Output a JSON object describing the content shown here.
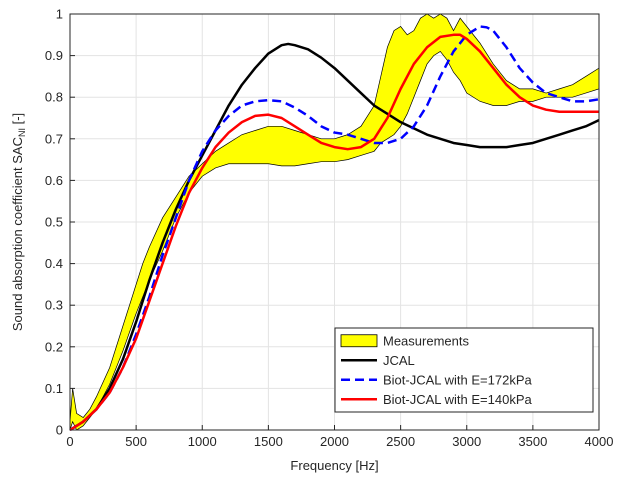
{
  "chart_data": {
    "type": "line",
    "xlabel": "Frequency [Hz]",
    "ylabel_main": "Sound absorption coefficient SAC",
    "ylabel_sub": "NI",
    "ylabel_unit": " [-]",
    "xlim": [
      0,
      4000
    ],
    "ylim": [
      0,
      1
    ],
    "xticks": [
      "0",
      "500",
      "1000",
      "1500",
      "2000",
      "2500",
      "3000",
      "3500",
      "4000"
    ],
    "yticks": [
      "0",
      "0.1",
      "0.2",
      "0.3",
      "0.4",
      "0.5",
      "0.6",
      "0.7",
      "0.8",
      "0.9",
      "1"
    ],
    "grid": true,
    "legend_position": "bottom-right",
    "band": {
      "name": "Measurements",
      "color": "#ffff00",
      "x": [
        0,
        20,
        50,
        100,
        150,
        200,
        300,
        400,
        500,
        550,
        600,
        700,
        800,
        900,
        1000,
        1100,
        1200,
        1300,
        1400,
        1500,
        1600,
        1700,
        1800,
        1900,
        2000,
        2100,
        2200,
        2300,
        2350,
        2400,
        2450,
        2500,
        2550,
        2600,
        2650,
        2700,
        2750,
        2800,
        2850,
        2900,
        2950,
        3000,
        3100,
        3200,
        3300,
        3400,
        3500,
        3600,
        3700,
        3800,
        3900,
        4000
      ],
      "upper": [
        0.02,
        0.1,
        0.04,
        0.03,
        0.05,
        0.08,
        0.15,
        0.25,
        0.35,
        0.4,
        0.44,
        0.51,
        0.56,
        0.61,
        0.64,
        0.67,
        0.69,
        0.71,
        0.72,
        0.73,
        0.73,
        0.72,
        0.71,
        0.7,
        0.7,
        0.71,
        0.73,
        0.78,
        0.85,
        0.92,
        0.96,
        0.97,
        0.95,
        0.96,
        0.99,
        1.0,
        0.99,
        1.0,
        0.99,
        0.96,
        0.99,
        0.97,
        0.93,
        0.88,
        0.84,
        0.82,
        0.82,
        0.81,
        0.82,
        0.83,
        0.85,
        0.87
      ],
      "lower": [
        0.0,
        0.02,
        0.0,
        0.01,
        0.03,
        0.05,
        0.11,
        0.19,
        0.28,
        0.32,
        0.36,
        0.43,
        0.51,
        0.57,
        0.61,
        0.63,
        0.64,
        0.64,
        0.64,
        0.64,
        0.635,
        0.635,
        0.64,
        0.645,
        0.645,
        0.65,
        0.66,
        0.67,
        0.69,
        0.7,
        0.71,
        0.73,
        0.76,
        0.8,
        0.84,
        0.88,
        0.9,
        0.91,
        0.89,
        0.86,
        0.84,
        0.81,
        0.79,
        0.78,
        0.78,
        0.79,
        0.79,
        0.8,
        0.8,
        0.8,
        0.81,
        0.82
      ]
    },
    "series": [
      {
        "name": "JCAL",
        "color": "#000000",
        "dash": "solid",
        "x": [
          0,
          100,
          200,
          300,
          400,
          500,
          600,
          700,
          800,
          900,
          1000,
          1100,
          1200,
          1300,
          1400,
          1500,
          1600,
          1650,
          1700,
          1800,
          1900,
          2000,
          2100,
          2200,
          2300,
          2400,
          2500,
          2600,
          2700,
          2800,
          2900,
          3000,
          3100,
          3200,
          3300,
          3400,
          3500,
          3600,
          3700,
          3800,
          3900,
          4000
        ],
        "values": [
          0.0,
          0.02,
          0.05,
          0.1,
          0.17,
          0.26,
          0.36,
          0.45,
          0.53,
          0.6,
          0.66,
          0.72,
          0.78,
          0.83,
          0.87,
          0.905,
          0.925,
          0.928,
          0.925,
          0.915,
          0.895,
          0.87,
          0.84,
          0.81,
          0.78,
          0.76,
          0.74,
          0.725,
          0.71,
          0.7,
          0.69,
          0.685,
          0.68,
          0.68,
          0.68,
          0.685,
          0.69,
          0.7,
          0.71,
          0.72,
          0.73,
          0.745
        ]
      },
      {
        "name": "Biot-JCAL with E=172kPa",
        "color": "#0000ff",
        "dash": "dashed",
        "x": [
          0,
          100,
          200,
          300,
          400,
          500,
          600,
          700,
          800,
          900,
          1000,
          1100,
          1200,
          1300,
          1400,
          1500,
          1600,
          1700,
          1800,
          1900,
          2000,
          2100,
          2200,
          2300,
          2400,
          2500,
          2600,
          2700,
          2800,
          2900,
          3000,
          3100,
          3150,
          3200,
          3300,
          3400,
          3500,
          3600,
          3700,
          3800,
          3900,
          4000
        ],
        "values": [
          0.0,
          0.02,
          0.05,
          0.09,
          0.15,
          0.23,
          0.32,
          0.42,
          0.51,
          0.6,
          0.67,
          0.72,
          0.755,
          0.78,
          0.79,
          0.793,
          0.79,
          0.775,
          0.755,
          0.73,
          0.715,
          0.71,
          0.7,
          0.69,
          0.69,
          0.7,
          0.73,
          0.78,
          0.85,
          0.91,
          0.95,
          0.97,
          0.968,
          0.96,
          0.92,
          0.87,
          0.835,
          0.81,
          0.8,
          0.79,
          0.79,
          0.795
        ]
      },
      {
        "name": "Biot-JCAL with E=140kPa",
        "color": "#ff0000",
        "dash": "solid",
        "x": [
          0,
          100,
          200,
          300,
          400,
          500,
          600,
          700,
          800,
          900,
          1000,
          1100,
          1200,
          1300,
          1400,
          1500,
          1600,
          1700,
          1800,
          1900,
          2000,
          2100,
          2200,
          2300,
          2400,
          2500,
          2600,
          2700,
          2800,
          2900,
          2950,
          3000,
          3100,
          3200,
          3300,
          3400,
          3500,
          3600,
          3700,
          3800,
          3900,
          4000
        ],
        "values": [
          0.0,
          0.02,
          0.05,
          0.09,
          0.15,
          0.22,
          0.31,
          0.4,
          0.49,
          0.57,
          0.63,
          0.68,
          0.715,
          0.74,
          0.755,
          0.758,
          0.75,
          0.73,
          0.71,
          0.69,
          0.68,
          0.675,
          0.68,
          0.7,
          0.75,
          0.82,
          0.88,
          0.92,
          0.945,
          0.95,
          0.95,
          0.94,
          0.91,
          0.87,
          0.83,
          0.8,
          0.78,
          0.77,
          0.765,
          0.765,
          0.765,
          0.765
        ]
      }
    ]
  }
}
